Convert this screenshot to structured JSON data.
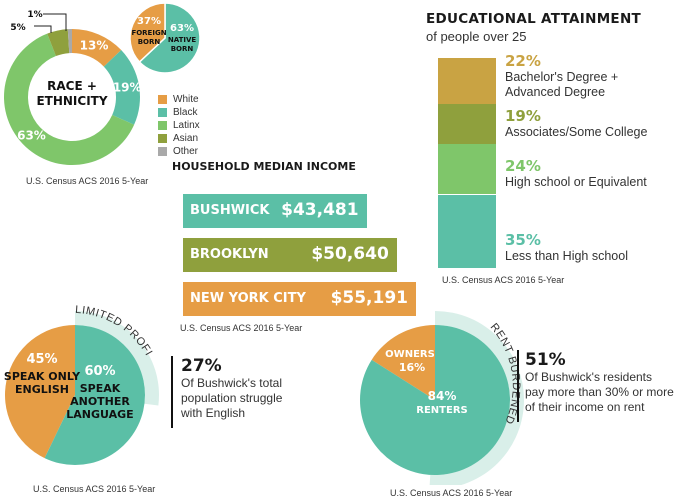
{
  "chart_data": [
    {
      "type": "donut",
      "title": "RACE + ETHNICITY",
      "source": "U.S. Census ACS 2016 5-Year",
      "categories": [
        "White",
        "Black",
        "Latinx",
        "Asian",
        "Other"
      ],
      "values": [
        13,
        19,
        63,
        5,
        1
      ],
      "value_labels": [
        "13%",
        "19%",
        "63%",
        "5%",
        "1%"
      ],
      "colors": [
        "#e69d45",
        "#5bbfa6",
        "#7fc66a",
        "#8fa03d",
        "#a9a9a9"
      ],
      "legend_position": "right"
    },
    {
      "type": "pie",
      "categories": [
        "FOREIGN BORN",
        "NATIVE BORN"
      ],
      "values": [
        37,
        63
      ],
      "value_labels": [
        "37%",
        "63%"
      ],
      "colors": [
        "#e69d45",
        "#5bbfa6"
      ]
    },
    {
      "type": "bar",
      "orientation": "horizontal",
      "title": "HOUSEHOLD MEDIAN INCOME",
      "source": "U.S. Census ACS 2016 5-Year",
      "categories": [
        "BUSHWICK",
        "BROOKLYN",
        "NEW YORK CITY"
      ],
      "values": [
        43481,
        50640,
        55191
      ],
      "value_labels": [
        "$43,481",
        "$50,640",
        "$55,191"
      ],
      "colors": [
        "#5bbfa6",
        "#8fa03d",
        "#e69d45"
      ]
    },
    {
      "type": "bar",
      "orientation": "stacked-vertical",
      "title": "EDUCATIONAL ATTAINMENT",
      "subtitle": "of people over 25",
      "source": "U.S. Census ACS 2016 5-Year",
      "categories": [
        "Bachelor's Degree + Advanced Degree",
        "Associates/Some College",
        "High school or Equivalent",
        "Less than High school"
      ],
      "label_lines": [
        [
          "Bachelor's Degree +",
          "Advanced Degree"
        ],
        [
          "Associates/Some College"
        ],
        [
          "High school or Equivalent"
        ],
        [
          "Less than High school"
        ]
      ],
      "values": [
        22,
        19,
        24,
        35
      ],
      "value_labels": [
        "22%",
        "19%",
        "24%",
        "35%"
      ],
      "colors": [
        "#c9a343",
        "#8fa03d",
        "#7fc66a",
        "#5bbfa6"
      ]
    },
    {
      "type": "pie",
      "ring_label": "LIMITED PROFICIENCY",
      "source": "U.S. Census ACS 2016 5-Year",
      "categories": [
        "SPEAK ONLY ENGLISH",
        "SPEAK ANOTHER LANGUAGE"
      ],
      "label_lines": [
        [
          "SPEAK ONLY",
          "ENGLISH"
        ],
        [
          "SPEAK",
          "ANOTHER",
          "LANGUAGE"
        ]
      ],
      "values": [
        45,
        60
      ],
      "value_labels": [
        "45%",
        "60%"
      ],
      "highlight_share": 27,
      "colors": [
        "#e69d45",
        "#5bbfa6",
        "#d9efe9"
      ]
    },
    {
      "type": "pie",
      "ring_label": "RENT BURDENED",
      "source": "U.S. Census ACS 2016 5-Year",
      "categories": [
        "OWNERS",
        "RENTERS"
      ],
      "values": [
        16,
        84
      ],
      "value_labels": [
        "16%",
        "84%"
      ],
      "highlight_share": 51,
      "colors": [
        "#e69d45",
        "#5bbfa6",
        "#d9efe9"
      ]
    }
  ],
  "stats": {
    "english": {
      "value": "27%",
      "lines": [
        "Of Bushwick's total",
        "population struggle",
        "with English"
      ]
    },
    "rent": {
      "value": "51%",
      "lines": [
        "Of Bushwick's residents",
        "pay more than 30% or more",
        "of their income on rent"
      ]
    }
  }
}
